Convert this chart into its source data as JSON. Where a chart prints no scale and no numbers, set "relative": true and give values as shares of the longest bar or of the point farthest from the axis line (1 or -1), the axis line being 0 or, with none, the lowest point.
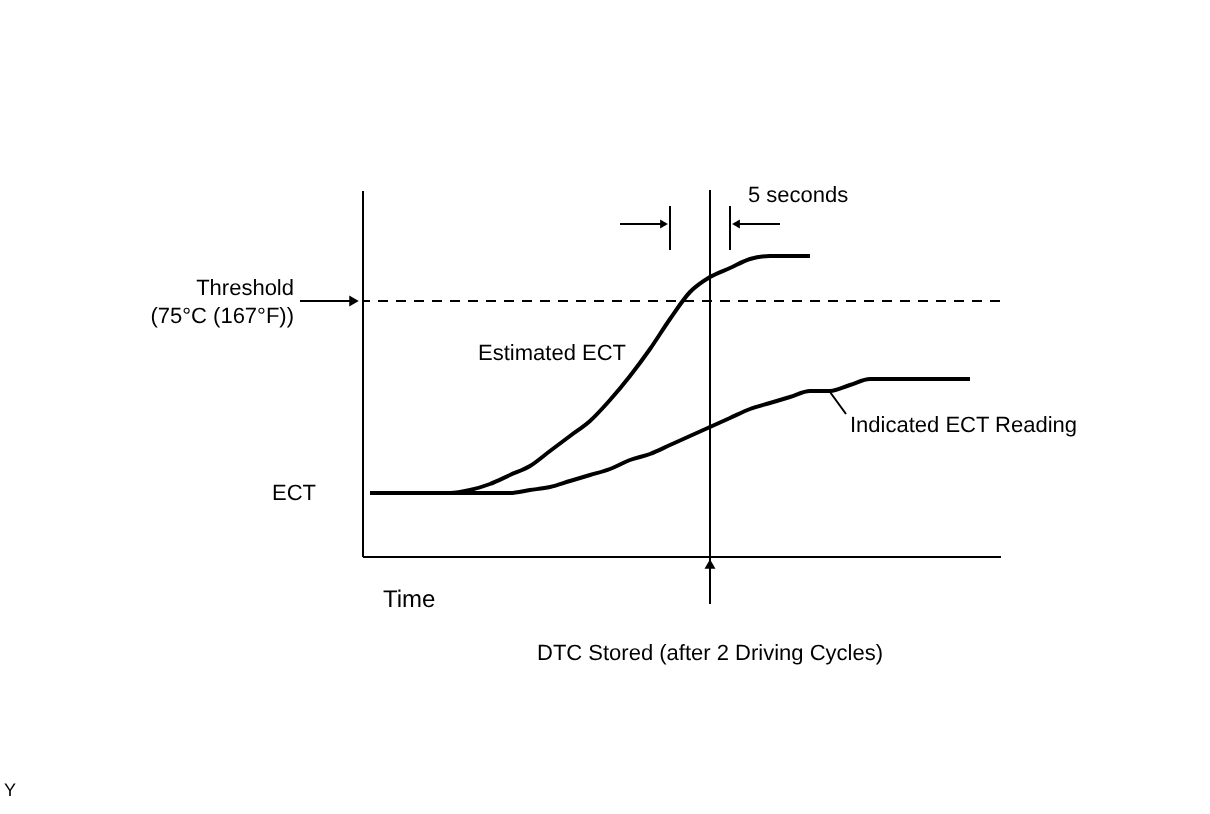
{
  "chart_data": {
    "type": "line",
    "relative": true,
    "xlabel": "Time",
    "legend": false,
    "grid": false,
    "marker": "none",
    "line_style": "solid",
    "categories": [
      null,
      null,
      null,
      null,
      null,
      null,
      null,
      null,
      null,
      null,
      null,
      null,
      null,
      null,
      null,
      null,
      null,
      null,
      null,
      null,
      null,
      null,
      null,
      null,
      null,
      null,
      null,
      null,
      null,
      null,
      null,
      null
    ],
    "series": [
      {
        "name": "Estimated ECT",
        "color": "#000000",
        "values": [
          0.21,
          0.21,
          0.21,
          0.21,
          0.21,
          0.22,
          0.24,
          0.27,
          0.3,
          0.35,
          0.4,
          0.45,
          0.52,
          0.6,
          0.69,
          0.79,
          0.88,
          0.93,
          0.96,
          0.99,
          1,
          1,
          1,
          null,
          null,
          null,
          null,
          null,
          null,
          null,
          null,
          null
        ]
      },
      {
        "name": "Indicated ECT Reading",
        "color": "#000000",
        "values": [
          0.21,
          0.21,
          0.21,
          0.21,
          0.21,
          0.21,
          0.21,
          0.21,
          0.22,
          0.23,
          0.25,
          0.27,
          0.29,
          0.32,
          0.34,
          0.37,
          0.4,
          0.43,
          0.46,
          0.49,
          0.51,
          0.53,
          0.55,
          0.55,
          0.57,
          0.59,
          0.59,
          0.59,
          0.59,
          0.59,
          0.59,
          null
        ]
      }
    ],
    "ref_lines": [
      {
        "axis": "y",
        "value": 0.85,
        "label": "Threshold\n(75°C (167°F))",
        "line_style": "dashed",
        "color": "#000000"
      }
    ],
    "annotations": [
      "5 seconds",
      "ECT",
      "Y",
      "DTC Stored (after 2 Driving Cycles)"
    ]
  }
}
